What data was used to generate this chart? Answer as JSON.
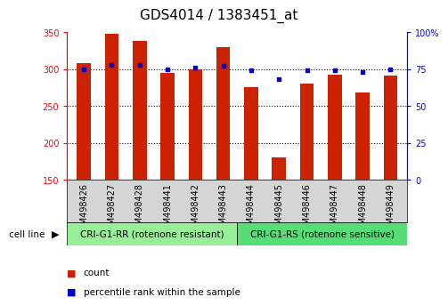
{
  "title": "GDS4014 / 1383451_at",
  "samples": [
    "GSM498426",
    "GSM498427",
    "GSM498428",
    "GSM498441",
    "GSM498442",
    "GSM498443",
    "GSM498444",
    "GSM498445",
    "GSM498446",
    "GSM498447",
    "GSM498448",
    "GSM498449"
  ],
  "counts": [
    308,
    347,
    338,
    295,
    300,
    330,
    275,
    180,
    280,
    292,
    268,
    291
  ],
  "percentile_ranks": [
    75,
    78,
    78,
    75,
    76,
    77,
    74,
    68,
    74,
    74,
    73,
    75
  ],
  "bar_color": "#CC2200",
  "dot_color": "#0000CC",
  "group1_label": "CRI-G1-RR (rotenone resistant)",
  "group2_label": "CRI-G1-RS (rotenone sensitive)",
  "group1_color": "#99EE99",
  "group2_color": "#55DD77",
  "group1_count": 6,
  "group2_count": 6,
  "ylim_left": [
    150,
    350
  ],
  "ylim_right": [
    0,
    100
  ],
  "yticks_left": [
    150,
    200,
    250,
    300,
    350
  ],
  "yticks_right": [
    0,
    25,
    50,
    75,
    100
  ],
  "ytick_labels_right": [
    "0",
    "25",
    "50",
    "75",
    "100%"
  ],
  "cell_line_label": "cell line",
  "legend_count_label": "count",
  "legend_pct_label": "percentile rank within the sample",
  "bar_width": 0.5,
  "title_fontsize": 11,
  "tick_fontsize": 7,
  "bg_color": "#FFFFFF"
}
